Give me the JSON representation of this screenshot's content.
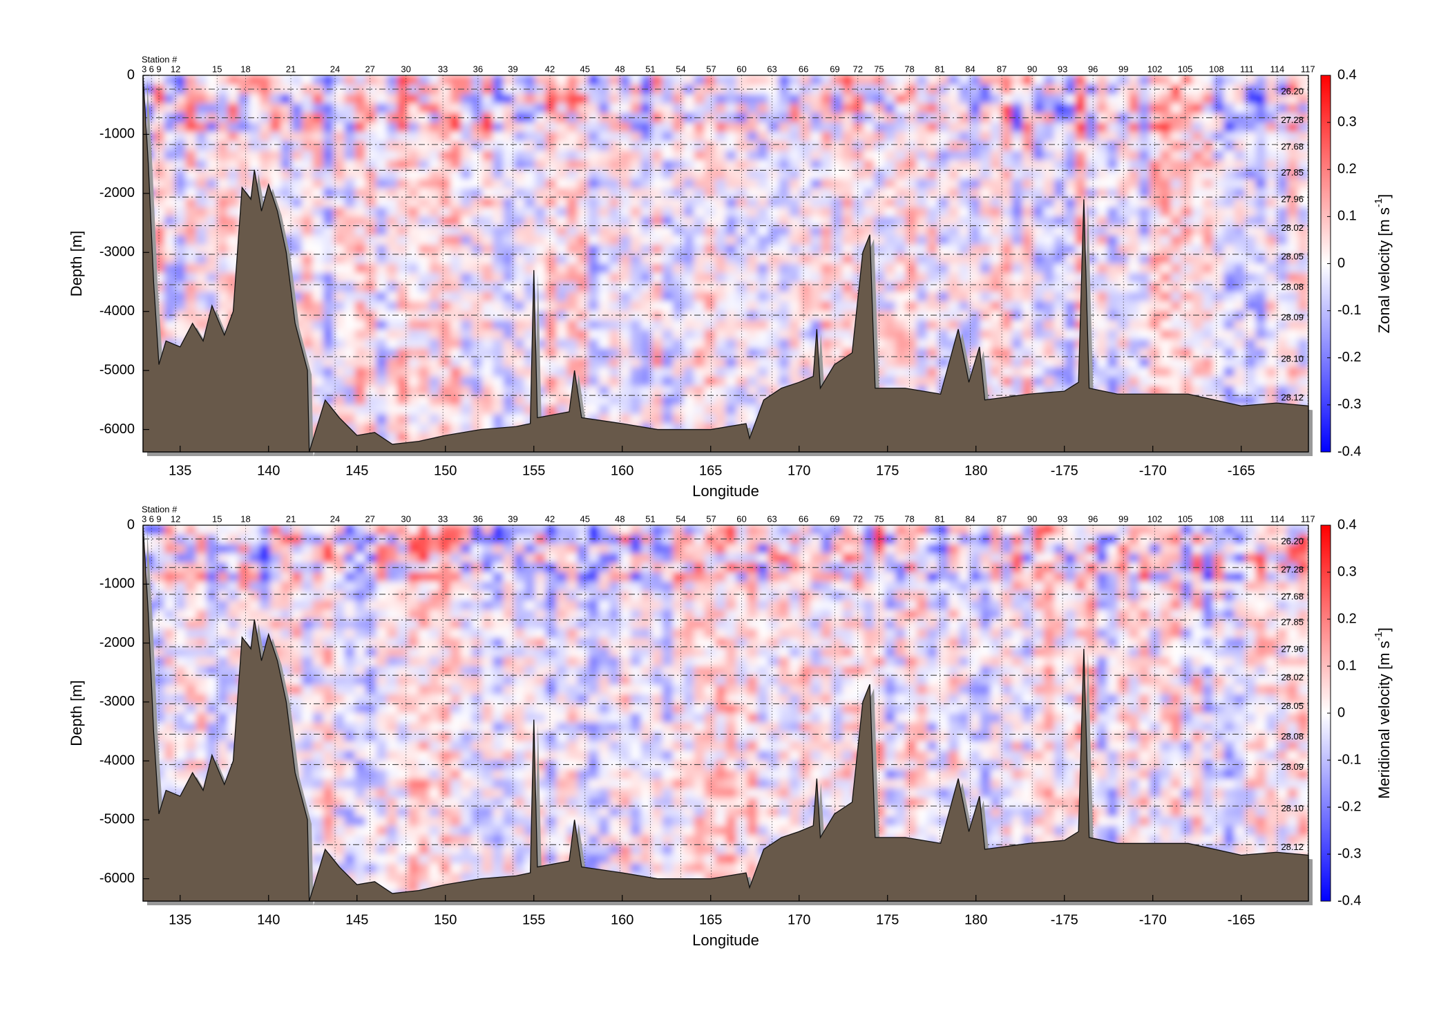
{
  "chart_data": [
    {
      "type": "section",
      "x_label": "Longitude",
      "y_label": "Depth [m]",
      "station_header": "Station #",
      "xlim": [
        132.9,
        198.8
      ],
      "xticks": [
        135,
        140,
        145,
        150,
        155,
        160,
        165,
        170,
        175,
        180,
        {
          "value": 185,
          "label": "-175"
        },
        {
          "value": 190,
          "label": "-170"
        },
        {
          "value": 195,
          "label": "-165"
        }
      ],
      "ylim": [
        -6380,
        0
      ],
      "yticks": [
        0,
        -1000,
        -2000,
        -3000,
        -4000,
        -5000,
        -6000
      ],
      "stations": [
        3,
        6,
        9,
        12,
        15,
        18,
        21,
        24,
        27,
        30,
        33,
        36,
        39,
        42,
        45,
        48,
        51,
        54,
        57,
        60,
        63,
        66,
        69,
        72,
        75,
        78,
        81,
        84,
        87,
        90,
        93,
        96,
        99,
        102,
        105,
        108,
        111,
        114,
        117
      ],
      "station_lon": [
        132.97,
        133.38,
        133.8,
        134.74,
        137.09,
        138.7,
        141.26,
        143.76,
        145.74,
        147.77,
        149.86,
        151.84,
        153.82,
        155.91,
        157.89,
        159.87,
        161.59,
        163.31,
        165.03,
        166.75,
        168.47,
        170.25,
        172.02,
        173.32,
        174.52,
        176.24,
        177.96,
        179.68,
        181.46,
        183.18,
        184.9,
        186.62,
        188.34,
        190.11,
        191.83,
        193.6,
        195.32,
        197.04,
        198.77
      ],
      "isopycnal_labels": [
        "26.20",
        "27.28",
        "27.68",
        "27.85",
        "27.96",
        "28.02",
        "28.05",
        "28.08",
        "28.09",
        "28.10",
        "28.12"
      ],
      "isopycnal_depths": [
        -234,
        -719,
        -1172,
        -1609,
        -2063,
        -2547,
        -3031,
        -3547,
        -4063,
        -4766,
        -5422
      ],
      "bathymetry": {
        "color": "#68594a",
        "x": [
          132.9,
          133.2,
          133.5,
          133.8,
          134.2,
          135,
          135.7,
          136.3,
          136.8,
          137.5,
          138,
          138.5,
          139,
          139.2,
          139.6,
          140,
          140.5,
          141,
          141.5,
          142.2,
          142.3,
          143.2,
          144,
          145,
          146,
          147,
          148.5,
          150,
          152,
          154,
          154.8,
          155,
          155.2,
          157,
          157.3,
          157.7,
          160,
          162,
          165,
          167,
          167.2,
          168,
          169,
          170,
          170.8,
          171,
          171.2,
          172,
          173,
          173.6,
          174,
          174.3,
          176,
          178,
          179,
          179.6,
          180.2,
          180.5,
          183,
          185,
          185.8,
          186.1,
          186.4,
          188,
          192,
          195,
          197,
          198.8
        ],
        "values": [
          0,
          -1500,
          -3500,
          -4900,
          -4500,
          -4600,
          -4200,
          -4500,
          -3900,
          -4400,
          -4000,
          -1900,
          -2100,
          -1600,
          -2300,
          -1850,
          -2300,
          -3000,
          -4200,
          -5000,
          -6380,
          -5500,
          -5800,
          -6100,
          -6050,
          -6250,
          -6200,
          -6100,
          -6000,
          -5950,
          -5900,
          -3300,
          -5800,
          -5700,
          -5000,
          -5800,
          -5900,
          -6000,
          -6000,
          -5900,
          -6150,
          -5500,
          -5300,
          -5200,
          -5100,
          -4300,
          -5300,
          -4900,
          -4700,
          -3000,
          -2700,
          -5300,
          -5300,
          -5400,
          -4300,
          -5200,
          -4600,
          -5500,
          -5400,
          -5350,
          -5200,
          -2100,
          -5300,
          -5400,
          -5400,
          -5600,
          -5550,
          -5600
        ]
      },
      "colorbar": {
        "label": "Zonal velocity [m s",
        "superscript": "-1",
        "suffix": "]",
        "lim": [
          -0.4,
          0.4
        ],
        "ticks": [
          0.4,
          0.3,
          0.2,
          0.1,
          0,
          -0.1,
          -0.2,
          -0.3,
          -0.4
        ],
        "colors": [
          "#0000ff",
          "#ffffff",
          "#ff0000"
        ]
      }
    },
    {
      "type": "section",
      "x_label": "Longitude",
      "y_label": "Depth [m]",
      "station_header": "Station #",
      "xlim": [
        132.9,
        198.8
      ],
      "xticks": [
        135,
        140,
        145,
        150,
        155,
        160,
        165,
        170,
        175,
        180,
        {
          "value": 185,
          "label": "-175"
        },
        {
          "value": 190,
          "label": "-170"
        },
        {
          "value": 195,
          "label": "-165"
        }
      ],
      "ylim": [
        -6380,
        0
      ],
      "yticks": [
        0,
        -1000,
        -2000,
        -3000,
        -4000,
        -5000,
        -6000
      ],
      "stations": [
        3,
        6,
        9,
        12,
        15,
        18,
        21,
        24,
        27,
        30,
        33,
        36,
        39,
        42,
        45,
        48,
        51,
        54,
        57,
        60,
        63,
        66,
        69,
        72,
        75,
        78,
        81,
        84,
        87,
        90,
        93,
        96,
        99,
        102,
        105,
        108,
        111,
        114,
        117
      ],
      "station_lon": [
        132.97,
        133.38,
        133.8,
        134.74,
        137.09,
        138.7,
        141.26,
        143.76,
        145.74,
        147.77,
        149.86,
        151.84,
        153.82,
        155.91,
        157.89,
        159.87,
        161.59,
        163.31,
        165.03,
        166.75,
        168.47,
        170.25,
        172.02,
        173.32,
        174.52,
        176.24,
        177.96,
        179.68,
        181.46,
        183.18,
        184.9,
        186.62,
        188.34,
        190.11,
        191.83,
        193.6,
        195.32,
        197.04,
        198.77
      ],
      "isopycnal_labels": [
        "26.20",
        "27.28",
        "27.68",
        "27.85",
        "27.96",
        "28.02",
        "28.05",
        "28.08",
        "28.09",
        "28.10",
        "28.12"
      ],
      "isopycnal_depths": [
        -234,
        -719,
        -1172,
        -1609,
        -2063,
        -2547,
        -3031,
        -3547,
        -4063,
        -4766,
        -5422
      ],
      "bathymetry": {
        "color": "#68594a",
        "x": [
          132.9,
          133.2,
          133.5,
          133.8,
          134.2,
          135,
          135.7,
          136.3,
          136.8,
          137.5,
          138,
          138.5,
          139,
          139.2,
          139.6,
          140,
          140.5,
          141,
          141.5,
          142.2,
          142.3,
          143.2,
          144,
          145,
          146,
          147,
          148.5,
          150,
          152,
          154,
          154.8,
          155,
          155.2,
          157,
          157.3,
          157.7,
          160,
          162,
          165,
          167,
          167.2,
          168,
          169,
          170,
          170.8,
          171,
          171.2,
          172,
          173,
          173.6,
          174,
          174.3,
          176,
          178,
          179,
          179.6,
          180.2,
          180.5,
          183,
          185,
          185.8,
          186.1,
          186.4,
          188,
          192,
          195,
          197,
          198.8
        ],
        "values": [
          0,
          -1500,
          -3500,
          -4900,
          -4500,
          -4600,
          -4200,
          -4500,
          -3900,
          -4400,
          -4000,
          -1900,
          -2100,
          -1600,
          -2300,
          -1850,
          -2300,
          -3000,
          -4200,
          -5000,
          -6380,
          -5500,
          -5800,
          -6100,
          -6050,
          -6250,
          -6200,
          -6100,
          -6000,
          -5950,
          -5900,
          -3300,
          -5800,
          -5700,
          -5000,
          -5800,
          -5900,
          -6000,
          -6000,
          -5900,
          -6150,
          -5500,
          -5300,
          -5200,
          -5100,
          -4300,
          -5300,
          -4900,
          -4700,
          -3000,
          -2700,
          -5300,
          -5300,
          -5400,
          -4300,
          -5200,
          -4600,
          -5500,
          -5400,
          -5350,
          -5200,
          -2100,
          -5300,
          -5400,
          -5400,
          -5600,
          -5550,
          -5600
        ]
      },
      "colorbar": {
        "label": "Meridional velocity [m s",
        "superscript": "-1",
        "suffix": "]",
        "lim": [
          -0.4,
          0.4
        ],
        "ticks": [
          0.4,
          0.3,
          0.2,
          0.1,
          0,
          -0.1,
          -0.2,
          -0.3,
          -0.4
        ],
        "colors": [
          "#0000ff",
          "#ffffff",
          "#ff0000"
        ]
      }
    }
  ]
}
